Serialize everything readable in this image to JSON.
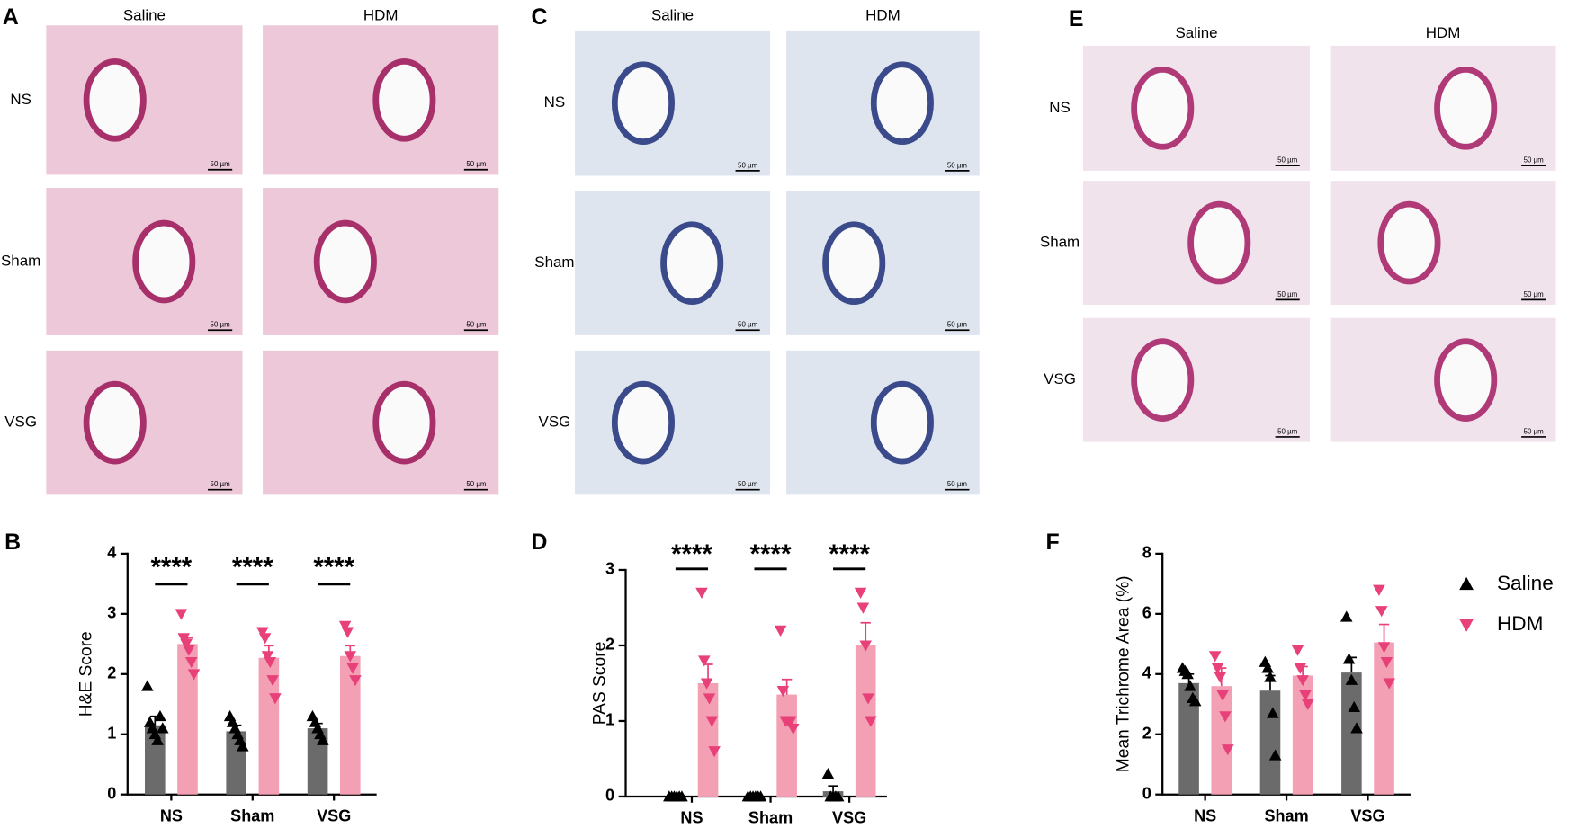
{
  "image_panels": [
    {
      "label": "A",
      "columns": [
        "Saline",
        "HDM"
      ],
      "rows": [
        "NS",
        "Sham",
        "VSG"
      ],
      "scale_bar": "50 µm"
    },
    {
      "label": "C",
      "columns": [
        "Saline",
        "HDM"
      ],
      "rows": [
        "NS",
        "Sham",
        "VSG"
      ],
      "scale_bar": "50 µm"
    },
    {
      "label": "E",
      "columns": [
        "Saline",
        "HDM"
      ],
      "rows": [
        "NS",
        "Sham",
        "VSG"
      ],
      "scale_bar": "50 µm"
    }
  ],
  "chart_data": [
    {
      "type": "bar",
      "panel": "B",
      "ylabel": "H&E Score",
      "categories": [
        "NS",
        "Sham",
        "VSG"
      ],
      "ylim": [
        0,
        4
      ],
      "yticks": [
        0,
        1,
        2,
        3,
        4
      ],
      "significance": [
        "****",
        "****",
        "****"
      ],
      "series": [
        {
          "name": "Saline",
          "color": "#6b6b6b",
          "marker_color": "#000000",
          "values": [
            1.15,
            1.05,
            1.1
          ],
          "errors": [
            0.15,
            0.1,
            0.08
          ],
          "points": [
            [
              1.8,
              1.2,
              1.1,
              1.0,
              0.9,
              1.3,
              1.1
            ],
            [
              1.3,
              1.2,
              1.1,
              1.0,
              0.9,
              0.8
            ],
            [
              1.3,
              1.2,
              1.1,
              1.0,
              0.9
            ]
          ]
        },
        {
          "name": "HDM",
          "color": "#f4a0b4",
          "marker_color": "#e8417a",
          "values": [
            2.5,
            2.27,
            2.3
          ],
          "errors": [
            0.1,
            0.2,
            0.17
          ],
          "points": [
            [
              3.0,
              2.6,
              2.5,
              2.4,
              2.2,
              2.0
            ],
            [
              2.7,
              2.6,
              2.3,
              2.2,
              1.9,
              1.6
            ],
            [
              2.8,
              2.7,
              2.3,
              2.1,
              1.9
            ]
          ]
        }
      ]
    },
    {
      "type": "bar",
      "panel": "D",
      "ylabel": "PAS Score",
      "categories": [
        "NS",
        "Sham",
        "VSG"
      ],
      "ylim": [
        0,
        3
      ],
      "yticks": [
        0,
        1,
        2,
        3
      ],
      "significance": [
        "****",
        "****",
        "****"
      ],
      "series": [
        {
          "name": "Saline",
          "color": "#6b6b6b",
          "marker_color": "#000000",
          "values": [
            0,
            0,
            0.07
          ],
          "errors": [
            0,
            0,
            0.07
          ],
          "points": [
            [
              0,
              0,
              0,
              0,
              0,
              0
            ],
            [
              0,
              0,
              0,
              0,
              0,
              0
            ],
            [
              0.3,
              0,
              0,
              0,
              0
            ]
          ]
        },
        {
          "name": "HDM",
          "color": "#f4a0b4",
          "marker_color": "#e8417a",
          "values": [
            1.5,
            1.35,
            2.0
          ],
          "errors": [
            0.25,
            0.2,
            0.3
          ],
          "points": [
            [
              2.7,
              1.8,
              1.5,
              1.3,
              1.0,
              0.6
            ],
            [
              2.2,
              1.4,
              1.0,
              1.0,
              1.0,
              0.9
            ],
            [
              2.7,
              2.5,
              2.0,
              1.3,
              1.0
            ]
          ]
        }
      ]
    },
    {
      "type": "bar",
      "panel": "F",
      "ylabel": "Mean Trichrome Area (%)",
      "categories": [
        "NS",
        "Sham",
        "VSG"
      ],
      "ylim": [
        0,
        8
      ],
      "yticks": [
        0,
        2,
        4,
        6,
        8
      ],
      "legend": "right",
      "series": [
        {
          "name": "Saline",
          "color": "#6b6b6b",
          "marker_color": "#000000",
          "values": [
            3.7,
            3.45,
            4.05
          ],
          "errors": [
            0.3,
            0.5,
            0.5
          ],
          "points": [
            [
              4.2,
              4.1,
              4.0,
              3.6,
              3.2,
              3.1
            ],
            [
              4.4,
              4.2,
              3.9,
              2.7,
              1.3
            ],
            [
              5.9,
              4.5,
              3.8,
              2.9,
              2.2
            ]
          ]
        },
        {
          "name": "HDM",
          "color": "#f4a0b4",
          "marker_color": "#e8417a",
          "values": [
            3.6,
            3.95,
            5.05
          ],
          "errors": [
            0.6,
            0.3,
            0.6
          ],
          "points": [
            [
              4.6,
              4.2,
              3.9,
              3.3,
              2.6,
              1.5
            ],
            [
              4.8,
              4.2,
              3.8,
              3.3,
              3.0
            ],
            [
              6.8,
              6.1,
              4.9,
              4.4,
              3.7
            ]
          ]
        }
      ]
    }
  ]
}
